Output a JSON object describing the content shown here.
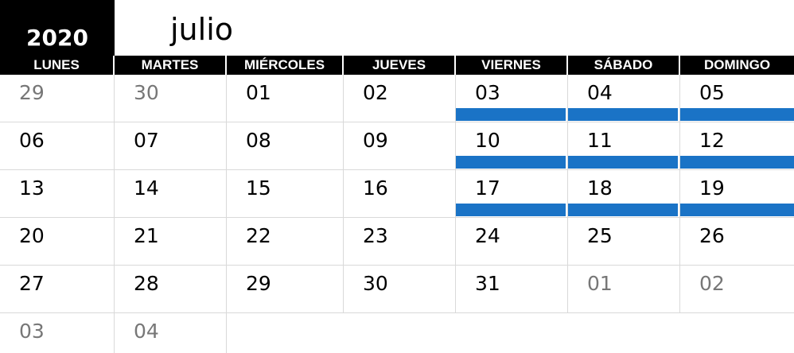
{
  "calendar": {
    "year": "2020",
    "month": "julio",
    "accent_color": "#1a73c6",
    "day_headers": [
      "LUNES",
      "MARTES",
      "MIÉRCOLES",
      "JUEVES",
      "VIERNES",
      "SÁBADO",
      "DOMINGO"
    ],
    "weeks": [
      [
        {
          "day": "29",
          "other_month": true,
          "highlight": false
        },
        {
          "day": "30",
          "other_month": true,
          "highlight": false
        },
        {
          "day": "01",
          "other_month": false,
          "highlight": false
        },
        {
          "day": "02",
          "other_month": false,
          "highlight": false
        },
        {
          "day": "03",
          "other_month": false,
          "highlight": true
        },
        {
          "day": "04",
          "other_month": false,
          "highlight": true
        },
        {
          "day": "05",
          "other_month": false,
          "highlight": true
        }
      ],
      [
        {
          "day": "06",
          "other_month": false,
          "highlight": false
        },
        {
          "day": "07",
          "other_month": false,
          "highlight": false
        },
        {
          "day": "08",
          "other_month": false,
          "highlight": false
        },
        {
          "day": "09",
          "other_month": false,
          "highlight": false
        },
        {
          "day": "10",
          "other_month": false,
          "highlight": true
        },
        {
          "day": "11",
          "other_month": false,
          "highlight": true
        },
        {
          "day": "12",
          "other_month": false,
          "highlight": true
        }
      ],
      [
        {
          "day": "13",
          "other_month": false,
          "highlight": false
        },
        {
          "day": "14",
          "other_month": false,
          "highlight": false
        },
        {
          "day": "15",
          "other_month": false,
          "highlight": false
        },
        {
          "day": "16",
          "other_month": false,
          "highlight": false
        },
        {
          "day": "17",
          "other_month": false,
          "highlight": true
        },
        {
          "day": "18",
          "other_month": false,
          "highlight": true
        },
        {
          "day": "19",
          "other_month": false,
          "highlight": true
        }
      ],
      [
        {
          "day": "20",
          "other_month": false,
          "highlight": false
        },
        {
          "day": "21",
          "other_month": false,
          "highlight": false
        },
        {
          "day": "22",
          "other_month": false,
          "highlight": false
        },
        {
          "day": "23",
          "other_month": false,
          "highlight": false
        },
        {
          "day": "24",
          "other_month": false,
          "highlight": false
        },
        {
          "day": "25",
          "other_month": false,
          "highlight": false
        },
        {
          "day": "26",
          "other_month": false,
          "highlight": false
        }
      ],
      [
        {
          "day": "27",
          "other_month": false,
          "highlight": false
        },
        {
          "day": "28",
          "other_month": false,
          "highlight": false
        },
        {
          "day": "29",
          "other_month": false,
          "highlight": false
        },
        {
          "day": "30",
          "other_month": false,
          "highlight": false
        },
        {
          "day": "31",
          "other_month": false,
          "highlight": false
        },
        {
          "day": "01",
          "other_month": true,
          "highlight": false
        },
        {
          "day": "02",
          "other_month": true,
          "highlight": false
        }
      ],
      [
        {
          "day": "03",
          "other_month": true,
          "highlight": false
        },
        {
          "day": "04",
          "other_month": true,
          "highlight": false
        }
      ]
    ]
  }
}
